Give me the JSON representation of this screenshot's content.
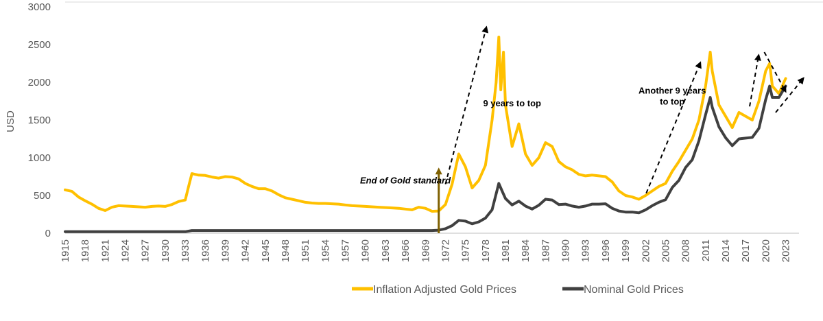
{
  "chart_data": {
    "type": "line",
    "title": "",
    "xlabel": "",
    "ylabel": "USD",
    "xlim": [
      1915,
      2025
    ],
    "ylim": [
      0,
      3000
    ],
    "yticks": [
      0,
      500,
      1000,
      1500,
      2000,
      2500,
      3000
    ],
    "ytick_labels": [
      "0",
      "500",
      "1000",
      "1500",
      "2000",
      "2500",
      "3000"
    ],
    "xtick_labels": [
      "1915",
      "1918",
      "1921",
      "1924",
      "1927",
      "1930",
      "1933",
      "1936",
      "1939",
      "1942",
      "1945",
      "1948",
      "1951",
      "1954",
      "1957",
      "1960",
      "1963",
      "1966",
      "1969",
      "1972",
      "1975",
      "1978",
      "1981",
      "1984",
      "1987",
      "1990",
      "1993",
      "1996",
      "1999",
      "2002",
      "2005",
      "2008",
      "2011",
      "2014",
      "2017",
      "2020",
      "2023"
    ],
    "grid": false,
    "legend": "bottom",
    "series": [
      {
        "name": "Inflation Adjusted Gold Prices",
        "color": "#FFC000",
        "points": [
          [
            1915,
            575
          ],
          [
            1916,
            555
          ],
          [
            1917,
            480
          ],
          [
            1918,
            430
          ],
          [
            1919,
            385
          ],
          [
            1920,
            330
          ],
          [
            1921,
            300
          ],
          [
            1922,
            345
          ],
          [
            1923,
            365
          ],
          [
            1924,
            360
          ],
          [
            1925,
            355
          ],
          [
            1926,
            350
          ],
          [
            1927,
            345
          ],
          [
            1928,
            355
          ],
          [
            1929,
            360
          ],
          [
            1930,
            355
          ],
          [
            1931,
            380
          ],
          [
            1932,
            420
          ],
          [
            1933,
            440
          ],
          [
            1933.5,
            620
          ],
          [
            1934,
            790
          ],
          [
            1935,
            770
          ],
          [
            1936,
            765
          ],
          [
            1937,
            745
          ],
          [
            1938,
            730
          ],
          [
            1939,
            750
          ],
          [
            1940,
            745
          ],
          [
            1941,
            720
          ],
          [
            1942,
            660
          ],
          [
            1943,
            620
          ],
          [
            1944,
            590
          ],
          [
            1945,
            590
          ],
          [
            1946,
            560
          ],
          [
            1947,
            510
          ],
          [
            1948,
            470
          ],
          [
            1949,
            450
          ],
          [
            1950,
            430
          ],
          [
            1951,
            410
          ],
          [
            1952,
            400
          ],
          [
            1953,
            395
          ],
          [
            1954,
            395
          ],
          [
            1955,
            390
          ],
          [
            1956,
            385
          ],
          [
            1957,
            375
          ],
          [
            1958,
            365
          ],
          [
            1959,
            360
          ],
          [
            1960,
            355
          ],
          [
            1961,
            350
          ],
          [
            1962,
            345
          ],
          [
            1963,
            340
          ],
          [
            1964,
            335
          ],
          [
            1965,
            330
          ],
          [
            1966,
            320
          ],
          [
            1967,
            310
          ],
          [
            1968,
            345
          ],
          [
            1969,
            330
          ],
          [
            1970,
            290
          ],
          [
            1971,
            295
          ],
          [
            1972,
            380
          ],
          [
            1973,
            650
          ],
          [
            1974,
            1050
          ],
          [
            1975,
            880
          ],
          [
            1976,
            600
          ],
          [
            1977,
            700
          ],
          [
            1978,
            900
          ],
          [
            1979,
            1500
          ],
          [
            1979.6,
            2000
          ],
          [
            1980,
            2600
          ],
          [
            1980.3,
            1900
          ],
          [
            1980.7,
            2400
          ],
          [
            1981,
            1700
          ],
          [
            1982,
            1150
          ],
          [
            1983,
            1450
          ],
          [
            1984,
            1050
          ],
          [
            1985,
            900
          ],
          [
            1986,
            1000
          ],
          [
            1987,
            1200
          ],
          [
            1988,
            1150
          ],
          [
            1989,
            950
          ],
          [
            1990,
            880
          ],
          [
            1991,
            840
          ],
          [
            1992,
            780
          ],
          [
            1993,
            760
          ],
          [
            1994,
            770
          ],
          [
            1995,
            760
          ],
          [
            1996,
            750
          ],
          [
            1997,
            680
          ],
          [
            1998,
            560
          ],
          [
            1999,
            500
          ],
          [
            2000,
            480
          ],
          [
            2001,
            450
          ],
          [
            2002,
            500
          ],
          [
            2003,
            560
          ],
          [
            2004,
            620
          ],
          [
            2005,
            660
          ],
          [
            2006,
            820
          ],
          [
            2007,
            950
          ],
          [
            2008,
            1100
          ],
          [
            2009,
            1250
          ],
          [
            2010,
            1500
          ],
          [
            2011,
            1950
          ],
          [
            2011.7,
            2400
          ],
          [
            2012,
            2150
          ],
          [
            2013,
            1700
          ],
          [
            2014,
            1550
          ],
          [
            2015,
            1400
          ],
          [
            2016,
            1600
          ],
          [
            2017,
            1550
          ],
          [
            2018,
            1500
          ],
          [
            2019,
            1750
          ],
          [
            2020,
            2150
          ],
          [
            2020.6,
            2250
          ],
          [
            2021,
            1950
          ],
          [
            2022,
            1850
          ],
          [
            2023,
            2050
          ]
        ]
      },
      {
        "name": "Nominal Gold Prices",
        "color": "#404040",
        "points": [
          [
            1915,
            20
          ],
          [
            1933,
            20
          ],
          [
            1934,
            35
          ],
          [
            1970,
            35
          ],
          [
            1971,
            40
          ],
          [
            1972,
            60
          ],
          [
            1973,
            100
          ],
          [
            1974,
            170
          ],
          [
            1975,
            160
          ],
          [
            1976,
            125
          ],
          [
            1977,
            150
          ],
          [
            1978,
            200
          ],
          [
            1979,
            310
          ],
          [
            1980,
            660
          ],
          [
            1980.5,
            560
          ],
          [
            1981,
            460
          ],
          [
            1982,
            375
          ],
          [
            1983,
            425
          ],
          [
            1984,
            360
          ],
          [
            1985,
            320
          ],
          [
            1986,
            370
          ],
          [
            1987,
            450
          ],
          [
            1988,
            440
          ],
          [
            1989,
            380
          ],
          [
            1990,
            385
          ],
          [
            1991,
            360
          ],
          [
            1992,
            345
          ],
          [
            1993,
            360
          ],
          [
            1994,
            385
          ],
          [
            1995,
            385
          ],
          [
            1996,
            390
          ],
          [
            1997,
            330
          ],
          [
            1998,
            295
          ],
          [
            1999,
            280
          ],
          [
            2000,
            280
          ],
          [
            2001,
            270
          ],
          [
            2002,
            310
          ],
          [
            2003,
            365
          ],
          [
            2004,
            410
          ],
          [
            2005,
            445
          ],
          [
            2006,
            605
          ],
          [
            2007,
            700
          ],
          [
            2008,
            870
          ],
          [
            2009,
            975
          ],
          [
            2010,
            1225
          ],
          [
            2011,
            1570
          ],
          [
            2011.7,
            1800
          ],
          [
            2012,
            1670
          ],
          [
            2013,
            1410
          ],
          [
            2014,
            1265
          ],
          [
            2015,
            1160
          ],
          [
            2016,
            1250
          ],
          [
            2017,
            1260
          ],
          [
            2018,
            1270
          ],
          [
            2019,
            1390
          ],
          [
            2020,
            1770
          ],
          [
            2020.6,
            1950
          ],
          [
            2021,
            1800
          ],
          [
            2022,
            1800
          ],
          [
            2023,
            1950
          ]
        ]
      }
    ],
    "annotations": [
      {
        "text": "End of Gold standard",
        "style": "bold-italic",
        "x": 1966,
        "y": 660
      },
      {
        "text": "9 years to top",
        "style": "bold",
        "x": 1982,
        "y": 1680
      },
      {
        "lines": [
          "Another 9 years",
          "to top"
        ],
        "style": "bold",
        "x": 2006,
        "y": 1850
      }
    ],
    "marker": {
      "label": "End of Gold standard",
      "x": 1971,
      "y_from": 0,
      "y_to": 870,
      "color": "#7F6000"
    },
    "trend_arrows": [
      {
        "from": [
          1972,
          650
        ],
        "to": [
          1978.2,
          2750
        ]
      },
      {
        "from": [
          2002.1,
          530
        ],
        "to": [
          2010.3,
          2280
        ]
      },
      {
        "from": [
          2017.6,
          1680
        ],
        "to": [
          2019,
          2380
        ]
      },
      {
        "from": [
          2019.8,
          2400
        ],
        "to": [
          2023.1,
          1860
        ]
      },
      {
        "from": [
          2021.5,
          1600
        ],
        "to": [
          2025.8,
          2070
        ]
      }
    ]
  }
}
